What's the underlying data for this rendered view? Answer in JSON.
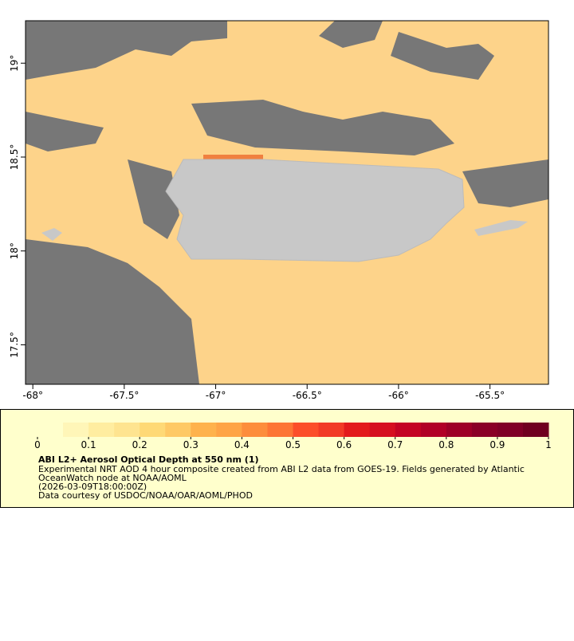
{
  "map": {
    "xlim": [
      -68.04,
      -65.18
    ],
    "ylim": [
      17.29,
      19.226
    ],
    "xticks": [
      {
        "value": -68,
        "label": "-68°"
      },
      {
        "value": -67.5,
        "label": "-67.5°"
      },
      {
        "value": -67,
        "label": "-67°"
      },
      {
        "value": -66.5,
        "label": "-66.5°"
      },
      {
        "value": -66,
        "label": "-66°"
      },
      {
        "value": -65.5,
        "label": "-65.5°"
      }
    ],
    "yticks": [
      {
        "value": 17.5,
        "label": "17.5°"
      },
      {
        "value": 18,
        "label": "18°"
      },
      {
        "value": 18.5,
        "label": "18.5°"
      },
      {
        "value": 19,
        "label": "19°"
      }
    ]
  },
  "colorbar": {
    "lim": [
      0,
      1
    ],
    "ticks": [
      0,
      0.1,
      0.2,
      0.3,
      0.4,
      0.5,
      0.6,
      0.7,
      0.8,
      0.9,
      1
    ],
    "colors": [
      "#ffffcc",
      "#fff6b8",
      "#ffeda0",
      "#fee490",
      "#fed976",
      "#fec965",
      "#feb24c",
      "#fea446",
      "#fd8d3c",
      "#fd7535",
      "#fc4e2a",
      "#f23a26",
      "#e31a1c",
      "#d60f20",
      "#c40424",
      "#b10026",
      "#9d0026",
      "#8a0026",
      "#800026",
      "#700020"
    ]
  },
  "caption": {
    "title": "ABI L2+ Aerosol Optical Depth at 550 nm (1)",
    "lines": [
      "Experimental NRT AOD 4 hour composite created from ABI L2 data from GOES-19. Fields generated by Atlantic",
      "OceanWatch node at NOAA/AOML",
      "(2026-03-09T18:00:00Z)",
      "Data courtesy of USDOC/NOAA/OAR/AOML/PHOD"
    ]
  }
}
